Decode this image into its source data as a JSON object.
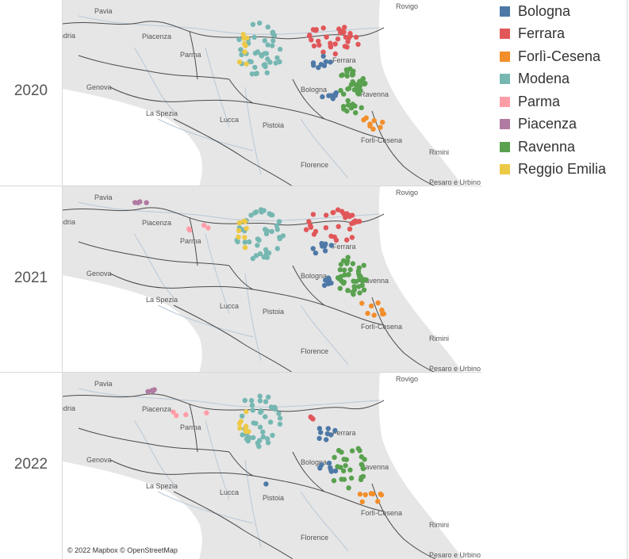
{
  "rows": [
    {
      "year": "2020",
      "town_labels": {
        "pavia": "Pavia",
        "rovigo": "Rovigo",
        "piacenza": "Piacenza",
        "parma": "Parma",
        "ferrara": "Ferrara",
        "genova": "Genova",
        "bologna": "Bologna",
        "ravenna": "Ravenna",
        "laspezia": "La Spezia",
        "forli": "Forlì-Cesena",
        "lucca": "Lucca",
        "pistoia": "Pistoia",
        "rimini": "Rimini",
        "florence": "Florence",
        "pesaro": "Pesaro e Urbino",
        "andria": "ndria"
      }
    },
    {
      "year": "2021",
      "town_labels": {
        "pavia": "Pavia",
        "rovigo": "Rovigo",
        "piacenza": "Piacenza",
        "parma": "Parma",
        "ferrara": "Ferrara",
        "genova": "Genova",
        "bologna": "Bologna",
        "ravenna": "Ravenna",
        "laspezia": "La Spezia",
        "forli": "Forlì-Cesena",
        "lucca": "Lucca",
        "pistoia": "Pistoia",
        "rimini": "Rimini",
        "florence": "Florence",
        "pesaro": "Pesaro e Urbino",
        "andria": "ndria"
      }
    },
    {
      "year": "2022",
      "town_labels": {
        "pavia": "Pavia",
        "rovigo": "Rovigo",
        "piacenza": "Piacenza",
        "parma": "Parma",
        "ferrara": "Ferrara",
        "genova": "Genova",
        "bologna": "Bologna",
        "ravenna": "Ravenna",
        "laspezia": "La Spezia",
        "forli": "Forlì-Cesena",
        "lucca": "Lucca",
        "pistoia": "Pistoia",
        "rimini": "Rimini",
        "florence": "Florence",
        "pesaro": "Pesaro e Urbino",
        "andria": "ndria"
      }
    }
  ],
  "legend": [
    {
      "label": "Bologna",
      "color": "#4e79a7"
    },
    {
      "label": "Ferrara",
      "color": "#e15759"
    },
    {
      "label": "Forlì-Cesena",
      "color": "#f28e2b"
    },
    {
      "label": "Modena",
      "color": "#76b7b2"
    },
    {
      "label": "Parma",
      "color": "#ff9da7"
    },
    {
      "label": "Piacenza",
      "color": "#b07aa1"
    },
    {
      "label": "Ravenna",
      "color": "#59a14f"
    },
    {
      "label": "Reggio Emilia",
      "color": "#edc948"
    }
  ],
  "attribution": "© 2022 Mapbox © OpenStreetMap",
  "colors": {
    "land": "#e6e6e6",
    "sea": "#ffffff",
    "border": "#4a4a4a",
    "river": "#b8c8d8",
    "label": "#555555"
  }
}
